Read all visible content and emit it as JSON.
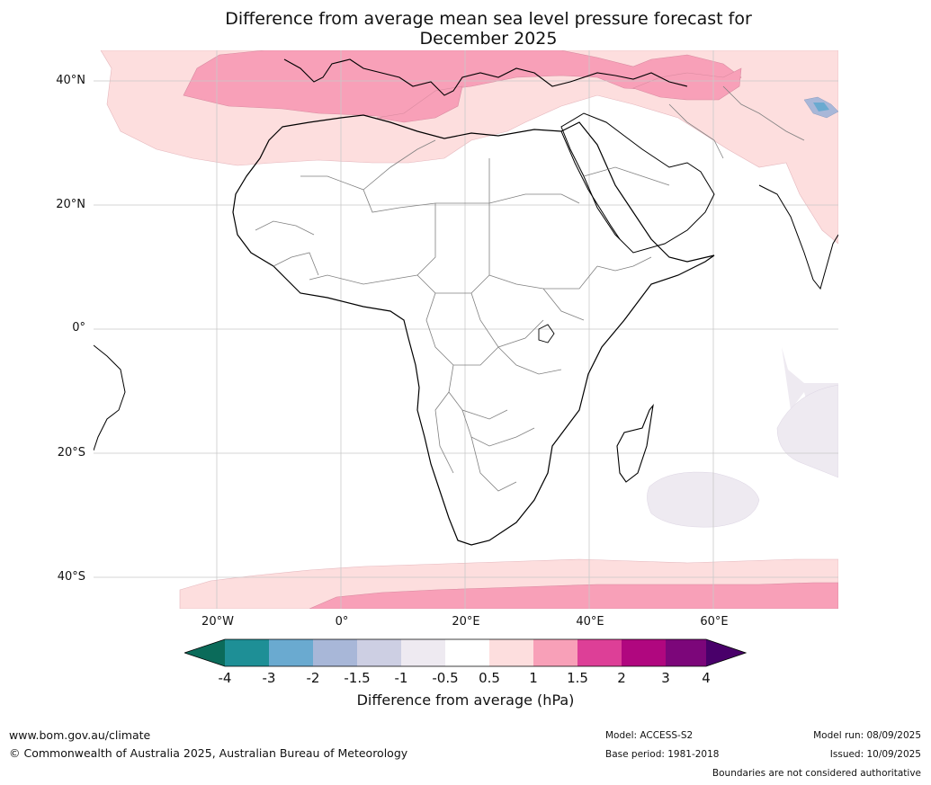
{
  "title": {
    "line1": "Difference from average mean sea level pressure forecast for",
    "line2": "December 2025"
  },
  "axes": {
    "lat_labels": [
      "40°N",
      "20°N",
      "0°",
      "20°S",
      "40°S"
    ],
    "lon_labels": [
      "20°W",
      "0°",
      "20°E",
      "40°E",
      "60°E"
    ]
  },
  "legend": {
    "title": "Difference from average (hPa)",
    "ticks": [
      "-4",
      "-3",
      "-2",
      "-1.5",
      "-1",
      "-0.5",
      "0.5",
      "1",
      "1.5",
      "2",
      "3",
      "4"
    ],
    "colors": {
      "below_minus4": "#0b6b5a",
      "minus4_to_minus3": "#1e8f96",
      "minus3_to_minus2": "#6aaad0",
      "minus2_to_minus1_5": "#a8b7d8",
      "minus1_5_to_minus1": "#cdcfe3",
      "minus1_to_minus0_5": "#eeeaf1",
      "minus0_5_to_0_5": "#ffffff",
      "plus0_5_to_1": "#fddede",
      "plus1_to_1_5": "#f8a0b8",
      "plus1_5_to_2": "#dd3f97",
      "plus2_to_3": "#b0077f",
      "plus3_to_4": "#7c067a",
      "above_4": "#49006a"
    }
  },
  "footer": {
    "url": "www.bom.gov.au/climate",
    "copyright": "© Commonwealth of Australia 2025, Australian Bureau of Meteorology",
    "model": "Model: ACCESS-S2",
    "base_period": "Base period: 1981-2018",
    "model_run": "Model run: 08/09/2025",
    "issued": "Issued: 10/09/2025",
    "disclaimer": "Boundaries are not considered authoritative"
  }
}
